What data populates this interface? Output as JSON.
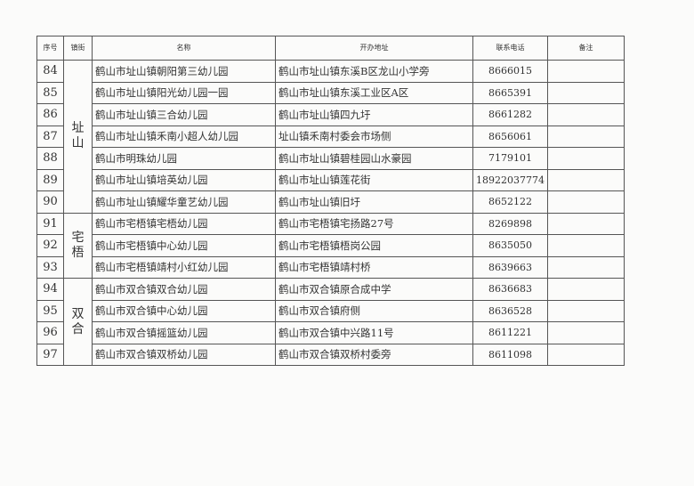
{
  "headers": {
    "seq": "序号",
    "town": "镇街",
    "name": "名称",
    "address": "开办地址",
    "phone": "联系电话",
    "note": "备注"
  },
  "groups": [
    {
      "town": "址山",
      "rows": [
        {
          "seq": "84",
          "name": "鹤山市址山镇朝阳第三幼儿园",
          "address": "鹤山市址山镇东溪B区龙山小学旁",
          "phone": "8666015",
          "note": ""
        },
        {
          "seq": "85",
          "name": "鹤山市址山镇阳光幼儿园一园",
          "address": "鹤山市址山镇东溪工业区A区",
          "phone": "8665391",
          "note": ""
        },
        {
          "seq": "86",
          "name": "鹤山市址山镇三合幼儿园",
          "address": "鹤山市址山镇四九圩",
          "phone": "8661282",
          "note": ""
        },
        {
          "seq": "87",
          "name": "鹤山市址山镇禾南小超人幼儿园",
          "address": "址山镇禾南村委会市场侧",
          "phone": "8656061",
          "note": ""
        },
        {
          "seq": "88",
          "name": "鹤山市明珠幼儿园",
          "address": "鹤山市址山镇碧桂园山水豪园",
          "phone": "7179101",
          "note": ""
        },
        {
          "seq": "89",
          "name": "鹤山市址山镇培英幼儿园",
          "address": "鹤山市址山镇莲花街",
          "phone": "18922037774",
          "note": ""
        },
        {
          "seq": "90",
          "name": "鹤山市址山镇耀华童艺幼儿园",
          "address": "鹤山市址山镇旧圩",
          "phone": "8652122",
          "note": ""
        }
      ]
    },
    {
      "town": "宅梧",
      "rows": [
        {
          "seq": "91",
          "name": "鹤山市宅梧镇宅梧幼儿园",
          "address": "鹤山市宅梧镇宅扬路27号",
          "phone": "8269898",
          "note": ""
        },
        {
          "seq": "92",
          "name": "鹤山市宅梧镇中心幼儿园",
          "address": "鹤山市宅梧镇梧岗公园",
          "phone": "8635050",
          "note": ""
        },
        {
          "seq": "93",
          "name": "鹤山市宅梧镇靖村小红幼儿园",
          "address": "鹤山市宅梧镇靖村桥",
          "phone": "8639663",
          "note": ""
        }
      ]
    },
    {
      "town": "双合",
      "rows": [
        {
          "seq": "94",
          "name": "鹤山市双合镇双合幼儿园",
          "address": "鹤山市双合镇原合成中学",
          "phone": "8636683",
          "note": ""
        },
        {
          "seq": "95",
          "name": "鹤山市双合镇中心幼儿园",
          "address": "鹤山市双合镇府侧",
          "phone": "8636528",
          "note": ""
        },
        {
          "seq": "96",
          "name": "鹤山市双合镇摇篮幼儿园",
          "address": "鹤山市双合镇中兴路11号",
          "phone": "8611221",
          "note": ""
        },
        {
          "seq": "97",
          "name": "鹤山市双合镇双桥幼儿园",
          "address": "鹤山市双合镇双桥村委旁",
          "phone": "8611098",
          "note": ""
        }
      ]
    }
  ]
}
